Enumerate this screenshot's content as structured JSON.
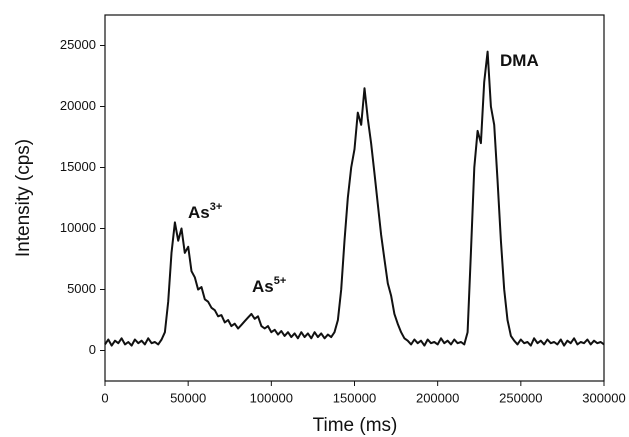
{
  "chart_data": {
    "type": "line",
    "x_label": "Time (ms)",
    "y_label": "Intensity (cps)",
    "color": "#111111",
    "xlim": [
      0,
      300000
    ],
    "ylim": [
      -2500,
      27500
    ],
    "xticks": [
      0,
      50000,
      100000,
      150000,
      200000,
      250000,
      300000
    ],
    "yticks": [
      0,
      5000,
      10000,
      15000,
      20000,
      25000
    ],
    "annotations": [
      {
        "text": "As",
        "sup": "3+"
      },
      {
        "text": "As",
        "sup": "5+"
      },
      {
        "text": "DMA"
      }
    ],
    "x": [
      0,
      2000,
      4000,
      6000,
      8000,
      10000,
      12000,
      14000,
      16000,
      18000,
      20000,
      22000,
      24000,
      26000,
      28000,
      30000,
      32000,
      34000,
      36000,
      38000,
      40000,
      42000,
      44000,
      46000,
      48000,
      50000,
      52000,
      54000,
      56000,
      58000,
      60000,
      62000,
      64000,
      66000,
      68000,
      70000,
      72000,
      74000,
      76000,
      78000,
      80000,
      82000,
      84000,
      86000,
      88000,
      90000,
      92000,
      94000,
      96000,
      98000,
      100000,
      102000,
      104000,
      106000,
      108000,
      110000,
      112000,
      114000,
      116000,
      118000,
      120000,
      122000,
      124000,
      126000,
      128000,
      130000,
      132000,
      134000,
      136000,
      138000,
      140000,
      142000,
      144000,
      146000,
      148000,
      150000,
      152000,
      154000,
      156000,
      158000,
      160000,
      162000,
      164000,
      166000,
      168000,
      170000,
      172000,
      174000,
      176000,
      178000,
      180000,
      182000,
      184000,
      186000,
      188000,
      190000,
      192000,
      194000,
      196000,
      198000,
      200000,
      202000,
      204000,
      206000,
      208000,
      210000,
      212000,
      214000,
      216000,
      218000,
      220000,
      222000,
      224000,
      226000,
      228000,
      230000,
      232000,
      234000,
      236000,
      238000,
      240000,
      242000,
      244000,
      246000,
      248000,
      250000,
      252000,
      254000,
      256000,
      258000,
      260000,
      262000,
      264000,
      266000,
      268000,
      270000,
      272000,
      274000,
      276000,
      278000,
      280000,
      282000,
      284000,
      286000,
      288000,
      290000,
      292000,
      294000,
      296000,
      298000,
      300000
    ],
    "values": [
      500,
      900,
      400,
      800,
      600,
      1000,
      500,
      700,
      400,
      900,
      600,
      800,
      500,
      1000,
      600,
      700,
      500,
      900,
      1500,
      4000,
      8000,
      10500,
      9000,
      10000,
      8000,
      8500,
      6500,
      6000,
      5000,
      5200,
      4200,
      4000,
      3500,
      3300,
      2800,
      2900,
      2300,
      2500,
      2000,
      2200,
      1800,
      2100,
      2400,
      2700,
      3000,
      2600,
      2800,
      2000,
      1800,
      2000,
      1500,
      1700,
      1300,
      1600,
      1200,
      1500,
      1100,
      1400,
      1000,
      1500,
      1100,
      1400,
      1000,
      1500,
      1100,
      1400,
      1000,
      1300,
      1100,
      1500,
      2500,
      5000,
      9000,
      12500,
      15000,
      16500,
      19500,
      18500,
      21500,
      19000,
      17000,
      14500,
      12000,
      9500,
      7500,
      5500,
      4500,
      3000,
      2200,
      1500,
      1000,
      800,
      500,
      900,
      600,
      800,
      400,
      900,
      600,
      700,
      500,
      1000,
      600,
      800,
      500,
      900,
      600,
      700,
      500,
      1500,
      8000,
      15000,
      18000,
      17000,
      22000,
      24500,
      20000,
      18500,
      14000,
      9000,
      5000,
      2500,
      1200,
      800,
      500,
      900,
      600,
      700,
      400,
      1000,
      600,
      800,
      500,
      900,
      600,
      700,
      500,
      900,
      400,
      800,
      600,
      1000,
      500,
      700,
      600,
      900,
      500,
      800,
      600,
      700,
      500
    ]
  }
}
